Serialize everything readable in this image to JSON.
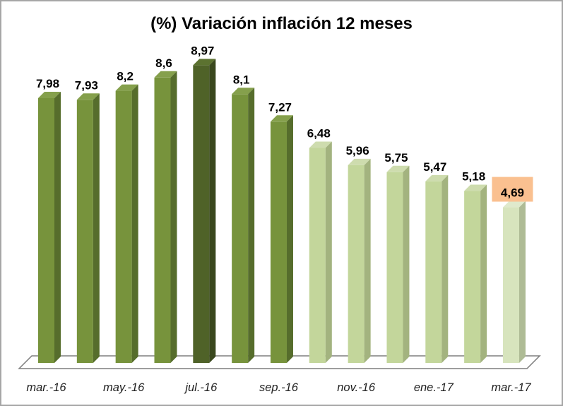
{
  "window": {
    "background": "#FFFFFF",
    "border_color": "#A6A6A6"
  },
  "chart_data": {
    "type": "bar",
    "style": "3d-column",
    "title": "(%) Variación inflación 12 meses",
    "values": [
      7.98,
      7.93,
      8.2,
      8.6,
      8.97,
      8.1,
      7.27,
      6.48,
      5.96,
      5.75,
      5.47,
      5.18,
      4.69
    ],
    "value_labels": [
      "7,98",
      "7,93",
      "8,2",
      "8,6",
      "8,97",
      "8,1",
      "7,27",
      "6,48",
      "5,96",
      "5,75",
      "5,47",
      "5,18",
      "4,69"
    ],
    "x_tick_labels": [
      "mar.-16",
      "may.-16",
      "jul.-16",
      "sep.-16",
      "nov.-16",
      "ene.-17",
      "mar.-17"
    ],
    "x_tick_bar_indices": [
      0,
      2,
      4,
      6,
      8,
      10,
      12
    ],
    "bar_color_roles": [
      "medium",
      "medium",
      "medium",
      "medium",
      "dark",
      "medium",
      "medium",
      "light",
      "light",
      "light",
      "light",
      "light",
      "lightest"
    ],
    "highlight": {
      "index": 12,
      "label": "4,69",
      "background": "#FAC090"
    },
    "colors": {
      "medium": {
        "front": "#77933C",
        "side": "#566D2C",
        "top": "#85A04C"
      },
      "dark": {
        "front": "#4F6228",
        "side": "#3A481E",
        "top": "#5C7230"
      },
      "light": {
        "front": "#C3D69B",
        "side": "#A3B37F",
        "top": "#CEDCAE"
      },
      "lightest": {
        "front": "#D7E4BD",
        "side": "#AEBB95",
        "top": "#DFE9CC"
      }
    },
    "baseline_value": 0,
    "axis": {
      "floor_stroke": "#7F7F7F",
      "floor_fill": "#FFFFFF",
      "tick_label_color": "#1F1F1F",
      "value_label_color": "#000000"
    },
    "legend": "none",
    "gridlines": "off"
  }
}
